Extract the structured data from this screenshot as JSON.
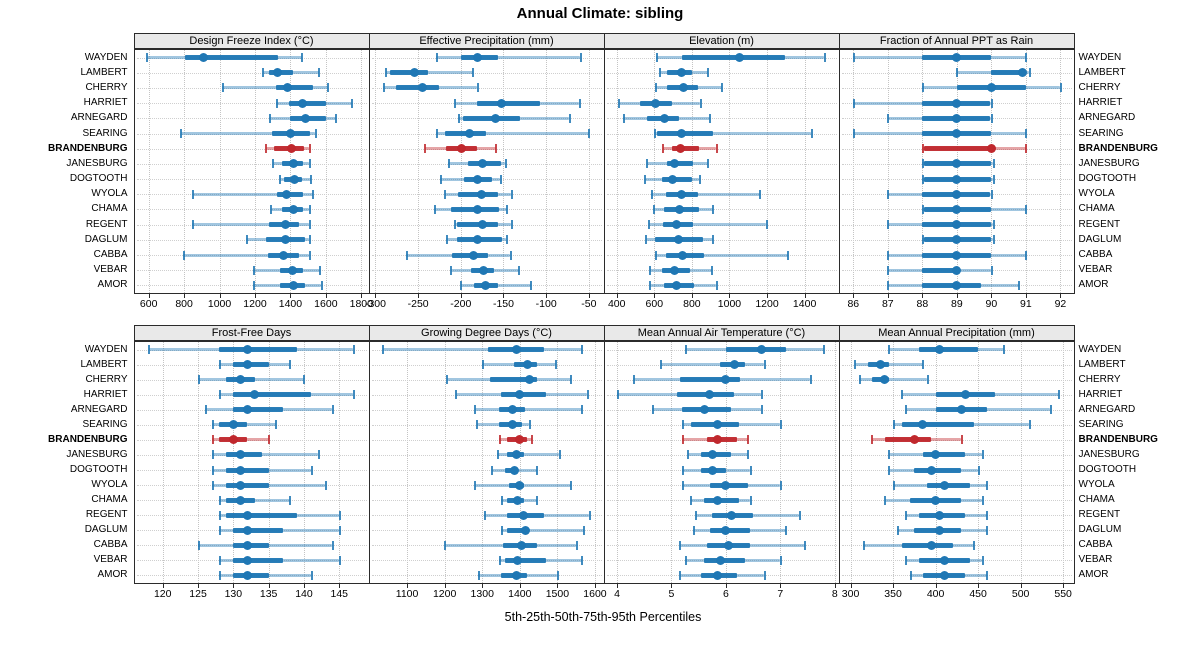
{
  "title": "Annual Climate: sibling",
  "footer": "5th-25th-50th-75th-95th Percentiles",
  "colors": {
    "series_normal": "#1f77b4",
    "series_highlight": "#c0282d",
    "panel_header_bg": "#e9e9e9",
    "panel_border": "#2b2b2b",
    "gridline": "#c7c7c7"
  },
  "highlight_row": "BRANDENBURG",
  "locations": [
    "WAYDEN",
    "LAMBERT",
    "CHERRY",
    "HARRIET",
    "ARNEGARD",
    "SEARING",
    "BRANDENBURG",
    "JANESBURG",
    "DOGTOOTH",
    "WYOLA",
    "CHAMA",
    "REGENT",
    "DAGLUM",
    "CABBA",
    "VEBAR",
    "AMOR"
  ],
  "chart_data": {
    "type": "dotplot-percentiles",
    "percentile_labels": [
      "5th",
      "25th",
      "50th",
      "75th",
      "95th"
    ],
    "grid_layout": "2 rows x 4 columns of panels, shared y-axis of 16 locations",
    "panels": [
      {
        "title": "Design Freeze Index (°C)",
        "xlim": [
          520,
          1835
        ],
        "ticks": [
          600,
          800,
          1000,
          1200,
          1400,
          1600,
          1800
        ],
        "series": {
          "WAYDEN": [
            590,
            805,
            910,
            1330,
            1465
          ],
          "LAMBERT": [
            1245,
            1280,
            1325,
            1415,
            1560
          ],
          "CHERRY": [
            1015,
            1320,
            1385,
            1525,
            1610
          ],
          "HARRIET": [
            1320,
            1390,
            1470,
            1600,
            1745
          ],
          "ARNEGARD": [
            1280,
            1395,
            1485,
            1600,
            1655
          ],
          "SEARING": [
            780,
            1295,
            1400,
            1510,
            1540
          ],
          "BRANDENBURG": [
            1260,
            1305,
            1405,
            1475,
            1505
          ],
          "JANESBURG": [
            1300,
            1355,
            1415,
            1470,
            1505
          ],
          "DOGTOOTH": [
            1340,
            1365,
            1425,
            1465,
            1515
          ],
          "WYOLA": [
            850,
            1325,
            1380,
            1470,
            1525
          ],
          "CHAMA": [
            1290,
            1350,
            1415,
            1470,
            1505
          ],
          "REGENT": [
            845,
            1280,
            1370,
            1450,
            1505
          ],
          "DAGLUM": [
            1150,
            1260,
            1370,
            1485,
            1505
          ],
          "CABBA": [
            795,
            1275,
            1360,
            1450,
            1505
          ],
          "VEBAR": [
            1190,
            1340,
            1410,
            1470,
            1565
          ],
          "AMOR": [
            1190,
            1340,
            1415,
            1485,
            1575
          ]
        }
      },
      {
        "title": "Effective Precipitation (mm)",
        "xlim": [
          -307,
          -34
        ],
        "ticks": [
          -300,
          -250,
          -200,
          -150,
          -100,
          -50
        ],
        "series": {
          "WAYDEN": [
            -229,
            -200,
            -181,
            -157,
            -60
          ],
          "LAMBERT": [
            -288,
            -283,
            -254,
            -239,
            -186
          ],
          "CHERRY": [
            -291,
            -276,
            -245,
            -225,
            -181
          ],
          "HARRIET": [
            -207,
            -181,
            -152,
            -107,
            -61
          ],
          "ARNEGARD": [
            -203,
            -198,
            -159,
            -131,
            -73
          ],
          "SEARING": [
            -229,
            -219,
            -190,
            -170,
            -50
          ],
          "BRANDENBURG": [
            -242,
            -217,
            -199,
            -181,
            -159
          ],
          "JANESBURG": [
            -215,
            -192,
            -175,
            -153,
            -148
          ],
          "DOGTOOTH": [
            -224,
            -196,
            -180,
            -164,
            -154
          ],
          "WYOLA": [
            -219,
            -203,
            -176,
            -157,
            -141
          ],
          "CHAMA": [
            -231,
            -212,
            -181,
            -155,
            -146
          ],
          "REGENT": [
            -207,
            -204,
            -175,
            -157,
            -141
          ],
          "DAGLUM": [
            -217,
            -205,
            -180,
            -152,
            -147
          ],
          "CABBA": [
            -264,
            -210,
            -185,
            -168,
            -142
          ],
          "VEBAR": [
            -212,
            -188,
            -174,
            -161,
            -132
          ],
          "AMOR": [
            -200,
            -185,
            -171,
            -157,
            -118
          ]
        }
      },
      {
        "title": "Elevation (m)",
        "xlim": [
          335,
          1575
        ],
        "ticks": [
          400,
          600,
          800,
          1000,
          1200,
          1400
        ],
        "series": {
          "WAYDEN": [
            610,
            745,
            1055,
            1295,
            1505
          ],
          "LAMBERT": [
            630,
            670,
            745,
            800,
            885
          ],
          "CHERRY": [
            605,
            670,
            755,
            830,
            960
          ],
          "HARRIET": [
            410,
            525,
            605,
            695,
            845
          ],
          "ARNEGARD": [
            435,
            560,
            655,
            730,
            895
          ],
          "SEARING": [
            600,
            615,
            745,
            910,
            1435
          ],
          "BRANDENBURG": [
            645,
            695,
            740,
            840,
            930
          ],
          "JANESBURG": [
            560,
            665,
            705,
            805,
            885
          ],
          "DOGTOOTH": [
            550,
            640,
            695,
            800,
            840
          ],
          "WYOLA": [
            585,
            660,
            745,
            830,
            1160
          ],
          "CHAMA": [
            595,
            650,
            735,
            840,
            910
          ],
          "REGENT": [
            570,
            645,
            720,
            805,
            1195
          ],
          "DAGLUM": [
            555,
            605,
            730,
            860,
            910
          ],
          "CABBA": [
            605,
            660,
            750,
            865,
            1310
          ],
          "VEBAR": [
            575,
            640,
            710,
            790,
            905
          ],
          "AMOR": [
            575,
            650,
            720,
            810,
            930
          ]
        }
      },
      {
        "title": "Fraction of Annual PPT as Rain",
        "xlim": [
          85.6,
          92.35
        ],
        "ticks": [
          86,
          87,
          88,
          89,
          90,
          91,
          92
        ],
        "series": {
          "WAYDEN": [
            86,
            88,
            89,
            90,
            91
          ],
          "LAMBERT": [
            89,
            90,
            90.9,
            91,
            91.1
          ],
          "CHERRY": [
            88,
            89,
            90,
            91,
            92
          ],
          "HARRIET": [
            86,
            88,
            89,
            89.95,
            90
          ],
          "ARNEGARD": [
            87,
            88,
            89,
            89.95,
            90
          ],
          "SEARING": [
            86,
            88,
            89,
            90,
            91
          ],
          "BRANDENBURG": [
            88,
            88.05,
            90,
            90.05,
            91
          ],
          "JANESBURG": [
            88,
            88.05,
            89,
            90,
            90.05
          ],
          "DOGTOOTH": [
            88,
            88.05,
            89,
            90,
            90.05
          ],
          "WYOLA": [
            87,
            88,
            89,
            89.95,
            90
          ],
          "CHAMA": [
            88,
            88.05,
            89,
            90,
            91
          ],
          "REGENT": [
            87,
            88,
            89,
            90,
            90.05
          ],
          "DAGLUM": [
            88,
            88.05,
            89,
            90,
            90.05
          ],
          "CABBA": [
            87,
            88,
            89,
            90,
            91
          ],
          "VEBAR": [
            87,
            88,
            89,
            89.1,
            90
          ],
          "AMOR": [
            87,
            88,
            89,
            89.7,
            90.8
          ]
        }
      },
      {
        "title": "Frost-Free Days",
        "xlim": [
          116,
          149
        ],
        "ticks": [
          120,
          125,
          130,
          135,
          140,
          145
        ],
        "series": {
          "WAYDEN": [
            118,
            128,
            132,
            139,
            147
          ],
          "LAMBERT": [
            128,
            130,
            132,
            135,
            138
          ],
          "CHERRY": [
            125,
            129,
            131,
            133,
            140
          ],
          "HARRIET": [
            128,
            130,
            133,
            141,
            147
          ],
          "ARNEGARD": [
            126,
            130,
            132,
            137,
            144
          ],
          "SEARING": [
            127,
            128,
            130,
            132,
            136
          ],
          "BRANDENBURG": [
            127,
            128,
            130,
            132,
            135
          ],
          "JANESBURG": [
            127,
            129,
            131,
            134,
            142
          ],
          "DOGTOOTH": [
            127,
            129,
            131,
            135,
            141
          ],
          "WYOLA": [
            127,
            129,
            131,
            135,
            143
          ],
          "CHAMA": [
            128,
            129,
            131,
            133,
            138
          ],
          "REGENT": [
            128,
            129,
            132,
            139,
            145
          ],
          "DAGLUM": [
            128,
            130,
            132,
            137,
            145
          ],
          "CABBA": [
            125,
            130,
            132,
            135,
            144
          ],
          "VEBAR": [
            128,
            130,
            132,
            137,
            145
          ],
          "AMOR": [
            128,
            130,
            132,
            135,
            141
          ]
        }
      },
      {
        "title": "Growing Degree Days (°C)",
        "xlim": [
          1000,
          1620
        ],
        "ticks": [
          1100,
          1200,
          1300,
          1400,
          1500,
          1600
        ],
        "series": {
          "WAYDEN": [
            1035,
            1315,
            1390,
            1465,
            1565
          ],
          "LAMBERT": [
            1300,
            1385,
            1420,
            1445,
            1495
          ],
          "CHERRY": [
            1205,
            1320,
            1425,
            1445,
            1535
          ],
          "HARRIET": [
            1230,
            1350,
            1400,
            1470,
            1580
          ],
          "ARNEGARD": [
            1280,
            1345,
            1380,
            1415,
            1565
          ],
          "SEARING": [
            1285,
            1345,
            1380,
            1405,
            1425
          ],
          "BRANDENBURG": [
            1345,
            1365,
            1400,
            1420,
            1432
          ],
          "JANESBURG": [
            1340,
            1365,
            1390,
            1410,
            1505
          ],
          "DOGTOOTH": [
            1325,
            1360,
            1385,
            1395,
            1445
          ],
          "WYOLA": [
            1280,
            1370,
            1400,
            1410,
            1535
          ],
          "CHAMA": [
            1350,
            1365,
            1395,
            1410,
            1445
          ],
          "REGENT": [
            1305,
            1365,
            1410,
            1465,
            1585
          ],
          "DAGLUM": [
            1350,
            1365,
            1415,
            1425,
            1570
          ],
          "CABBA": [
            1200,
            1355,
            1405,
            1445,
            1550
          ],
          "VEBAR": [
            1345,
            1360,
            1395,
            1470,
            1565
          ],
          "AMOR": [
            1290,
            1350,
            1390,
            1420,
            1500
          ]
        }
      },
      {
        "title": "Mean Annual Air Temperature (°C)",
        "xlim": [
          3.77,
          8.05
        ],
        "ticks": [
          4,
          5,
          6,
          7,
          8
        ],
        "series": {
          "WAYDEN": [
            5.25,
            6.0,
            6.65,
            7.1,
            7.8
          ],
          "LAMBERT": [
            4.8,
            5.9,
            6.15,
            6.35,
            6.7
          ],
          "CHERRY": [
            4.3,
            5.15,
            6.0,
            6.25,
            7.55
          ],
          "HARRIET": [
            4.0,
            5.1,
            5.7,
            6.15,
            6.65
          ],
          "ARNEGARD": [
            4.65,
            5.2,
            5.6,
            6.1,
            6.65
          ],
          "SEARING": [
            5.2,
            5.35,
            5.85,
            6.25,
            7.0
          ],
          "BRANDENBURG": [
            5.2,
            5.65,
            5.85,
            6.2,
            6.4
          ],
          "JANESBURG": [
            5.3,
            5.55,
            5.75,
            6.1,
            6.4
          ],
          "DOGTOOTH": [
            5.2,
            5.55,
            5.75,
            6.0,
            6.45
          ],
          "WYOLA": [
            5.2,
            5.7,
            6.0,
            6.4,
            7.0
          ],
          "CHAMA": [
            5.35,
            5.6,
            5.85,
            6.25,
            6.45
          ],
          "REGENT": [
            5.45,
            5.75,
            6.1,
            6.5,
            7.35
          ],
          "DAGLUM": [
            5.4,
            5.7,
            6.0,
            6.45,
            7.1
          ],
          "CABBA": [
            5.15,
            5.65,
            6.05,
            6.45,
            7.45
          ],
          "VEBAR": [
            5.25,
            5.6,
            5.9,
            6.35,
            7.0
          ],
          "AMOR": [
            5.15,
            5.55,
            5.85,
            6.2,
            6.7
          ]
        }
      },
      {
        "title": "Mean Annual Precipitation (mm)",
        "xlim": [
          287,
          561
        ],
        "ticks": [
          300,
          350,
          400,
          450,
          500,
          550
        ],
        "series": {
          "WAYDEN": [
            345,
            380,
            405,
            450,
            480
          ],
          "LAMBERT": [
            305,
            320,
            335,
            345,
            385
          ],
          "CHERRY": [
            310,
            325,
            340,
            345,
            390
          ],
          "HARRIET": [
            360,
            400,
            435,
            470,
            545
          ],
          "ARNEGARD": [
            365,
            400,
            430,
            460,
            535
          ],
          "SEARING": [
            350,
            360,
            385,
            445,
            510
          ],
          "BRANDENBURG": [
            325,
            340,
            375,
            395,
            430
          ],
          "JANESBURG": [
            345,
            385,
            400,
            435,
            455
          ],
          "DOGTOOTH": [
            345,
            375,
            395,
            430,
            450
          ],
          "WYOLA": [
            350,
            390,
            410,
            440,
            460
          ],
          "CHAMA": [
            340,
            370,
            400,
            430,
            455
          ],
          "REGENT": [
            365,
            380,
            405,
            435,
            460
          ],
          "DAGLUM": [
            355,
            375,
            405,
            430,
            460
          ],
          "CABBA": [
            315,
            360,
            395,
            420,
            445
          ],
          "VEBAR": [
            365,
            380,
            410,
            440,
            455
          ],
          "AMOR": [
            370,
            385,
            410,
            435,
            460
          ]
        }
      }
    ]
  }
}
